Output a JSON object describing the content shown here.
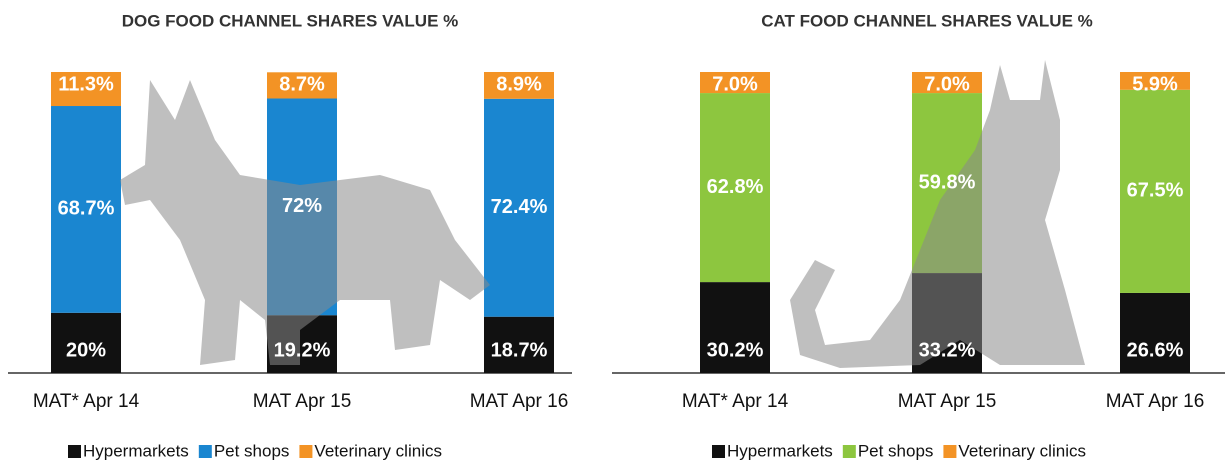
{
  "chart_data": [
    {
      "type": "stacked_bar",
      "title": "DOG FOOD CHANNEL SHARES VALUE %",
      "categories": [
        "MAT* Apr 14",
        "MAT Apr 15",
        "MAT Apr 16"
      ],
      "series": [
        {
          "name": "Hypermarkets",
          "color": "#111111",
          "values": [
            20,
            19.2,
            18.7
          ],
          "value_labels": [
            "20%",
            "19.2%",
            "18.7%"
          ]
        },
        {
          "name": "Pet shops",
          "color": "#1a86d0",
          "values": [
            68.7,
            72,
            72.4
          ],
          "value_labels": [
            "68.7%",
            "72%",
            "72.4%"
          ]
        },
        {
          "name": "Veterinary clinics",
          "color": "#f39325",
          "values": [
            11.3,
            8.7,
            8.9
          ],
          "value_labels": [
            "11.3%",
            "8.7%",
            "8.9%"
          ]
        }
      ]
    },
    {
      "type": "stacked_bar",
      "title": "CAT FOOD CHANNEL SHARES VALUE %",
      "categories": [
        "MAT* Apr 14",
        "MAT Apr 15",
        "MAT Apr 16"
      ],
      "series": [
        {
          "name": "Hypermarkets",
          "color": "#111111",
          "values": [
            30.2,
            33.2,
            26.6
          ],
          "value_labels": [
            "30.2%",
            "33.2%",
            "26.6%"
          ]
        },
        {
          "name": "Pet shops",
          "color": "#8dc63f",
          "values": [
            62.8,
            59.8,
            67.5
          ],
          "value_labels": [
            "62.8%",
            "59.8%",
            "67.5%"
          ]
        },
        {
          "name": "Veterinary clinics",
          "color": "#f39325",
          "values": [
            7.0,
            7.0,
            5.9
          ],
          "value_labels": [
            "7.0%",
            "7.0%",
            "5.9%"
          ]
        }
      ]
    }
  ]
}
